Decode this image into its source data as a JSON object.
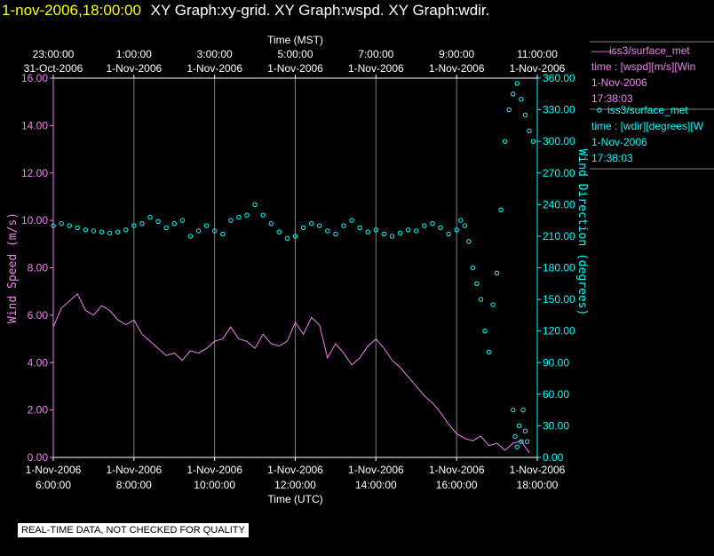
{
  "title": {
    "datetime": "1-nov-2006,18:00:00",
    "graphs": "XY Graph:xy-grid.  XY Graph:wspd.  XY Graph:wdir."
  },
  "colors": {
    "background": "#000000",
    "title_date": "#ffff00",
    "wind_speed": "#ee82ee",
    "wind_dir": "#00ffff",
    "grid": "#7f7f7f",
    "axis_text": "#ffffff"
  },
  "chart_data": {
    "type": "line",
    "top_axis": {
      "title": "Time (MST)",
      "ticks": [
        {
          "hour": 6,
          "time": "23:00:00",
          "date": "31-Oct-2006"
        },
        {
          "hour": 8,
          "time": "1:00:00",
          "date": "1-Nov-2006"
        },
        {
          "hour": 10,
          "time": "3:00:00",
          "date": "1-Nov-2006"
        },
        {
          "hour": 12,
          "time": "5:00:00",
          "date": "1-Nov-2006"
        },
        {
          "hour": 14,
          "time": "7:00:00",
          "date": "1-Nov-2006"
        },
        {
          "hour": 16,
          "time": "9:00:00",
          "date": "1-Nov-2006"
        },
        {
          "hour": 18,
          "time": "11:00:00",
          "date": "1-Nov-2006"
        }
      ]
    },
    "bottom_axis": {
      "title": "Time (UTC)",
      "ticks": [
        {
          "hour": 6,
          "date": "1-Nov-2006",
          "time": "6:00:00"
        },
        {
          "hour": 8,
          "date": "1-Nov-2006",
          "time": "8:00:00"
        },
        {
          "hour": 10,
          "date": "1-Nov-2006",
          "time": "10:00:00"
        },
        {
          "hour": 12,
          "date": "1-Nov-2006",
          "time": "12:00:00"
        },
        {
          "hour": 14,
          "date": "1-Nov-2006",
          "time": "14:00:00"
        },
        {
          "hour": 16,
          "date": "1-Nov-2006",
          "time": "16:00:00"
        },
        {
          "hour": 18,
          "date": "1-Nov-2006",
          "time": "18:00:00"
        }
      ]
    },
    "xlim_hours": [
      6,
      18
    ],
    "left_axis": {
      "label": "Wind Speed (m/s)",
      "ylim": [
        0,
        16
      ],
      "ticks": [
        "0.00",
        "2.00",
        "4.00",
        "6.00",
        "8.00",
        "10.00",
        "12.00",
        "14.00",
        "16.00"
      ]
    },
    "right_axis": {
      "label": "Wind Direction (degrees)",
      "ylim": [
        0,
        360
      ],
      "ticks": [
        "0.00",
        "30.00",
        "60.00",
        "90.00",
        "120.00",
        "150.00",
        "180.00",
        "210.00",
        "240.00",
        "270.00",
        "300.00",
        "330.00",
        "360.00"
      ]
    },
    "grid": true,
    "series": [
      {
        "name": "wspd",
        "axis": "left",
        "style": "line",
        "hours": [
          6.0,
          6.2,
          6.4,
          6.6,
          6.8,
          7.0,
          7.2,
          7.4,
          7.6,
          7.8,
          8.0,
          8.2,
          8.4,
          8.6,
          8.8,
          9.0,
          9.2,
          9.4,
          9.6,
          9.8,
          10.0,
          10.2,
          10.4,
          10.6,
          10.8,
          11.0,
          11.2,
          11.4,
          11.6,
          11.8,
          12.0,
          12.2,
          12.4,
          12.6,
          12.8,
          13.0,
          13.2,
          13.4,
          13.6,
          13.8,
          14.0,
          14.2,
          14.4,
          14.6,
          14.8,
          15.0,
          15.2,
          15.4,
          15.6,
          15.8,
          16.0,
          16.2,
          16.4,
          16.6,
          16.8,
          17.0,
          17.2,
          17.4,
          17.6,
          17.8
        ],
        "values": [
          5.5,
          6.3,
          6.6,
          6.9,
          6.2,
          6.0,
          6.4,
          6.2,
          5.8,
          5.6,
          5.8,
          5.2,
          4.9,
          4.6,
          4.3,
          4.4,
          4.1,
          4.5,
          4.4,
          4.6,
          4.9,
          5.0,
          5.5,
          5.0,
          4.9,
          4.6,
          5.2,
          4.8,
          4.7,
          4.9,
          5.7,
          5.2,
          5.9,
          5.6,
          4.2,
          4.8,
          4.4,
          3.9,
          4.2,
          4.7,
          5.0,
          4.6,
          4.1,
          3.8,
          3.4,
          3.0,
          2.6,
          2.3,
          1.9,
          1.4,
          1.0,
          0.8,
          0.7,
          0.9,
          0.5,
          0.6,
          0.3,
          0.6,
          0.7,
          0.2
        ]
      },
      {
        "name": "wdir",
        "axis": "right",
        "style": "markers",
        "hours": [
          6.0,
          6.2,
          6.4,
          6.6,
          6.8,
          7.0,
          7.2,
          7.4,
          7.6,
          7.8,
          8.0,
          8.2,
          8.4,
          8.6,
          8.8,
          9.0,
          9.2,
          9.4,
          9.6,
          9.8,
          10.0,
          10.2,
          10.4,
          10.6,
          10.8,
          11.0,
          11.2,
          11.4,
          11.6,
          11.8,
          12.0,
          12.2,
          12.4,
          12.6,
          12.8,
          13.0,
          13.2,
          13.4,
          13.6,
          13.8,
          14.0,
          14.2,
          14.4,
          14.6,
          14.8,
          15.0,
          15.2,
          15.4,
          15.6,
          15.8,
          16.0,
          16.1,
          16.2,
          16.3,
          16.4,
          16.5,
          16.6,
          16.7,
          16.8,
          16.9,
          17.0,
          17.1,
          17.2,
          17.3,
          17.4,
          17.5,
          17.6,
          17.7,
          17.8,
          17.9
        ],
        "values": [
          220,
          222,
          220,
          218,
          216,
          215,
          214,
          213,
          214,
          216,
          220,
          222,
          228,
          224,
          218,
          222,
          225,
          210,
          215,
          220,
          215,
          212,
          225,
          228,
          230,
          240,
          230,
          222,
          214,
          208,
          210,
          218,
          222,
          220,
          215,
          212,
          220,
          225,
          218,
          214,
          216,
          212,
          210,
          213,
          216,
          215,
          220,
          222,
          218,
          212,
          216,
          225,
          220,
          205,
          180,
          165,
          150,
          120,
          100,
          145,
          175,
          235,
          300,
          330,
          345,
          355,
          340,
          325,
          310,
          300
        ]
      },
      {
        "name": "wdir-late-low",
        "axis": "right",
        "style": "markers",
        "hours": [
          17.4,
          17.45,
          17.5,
          17.55,
          17.6,
          17.65,
          17.7,
          17.75
        ],
        "values": [
          45,
          20,
          10,
          30,
          15,
          45,
          25,
          15
        ]
      }
    ]
  },
  "legend": [
    {
      "marker": "——",
      "source": "iss3/surface_met",
      "field": "time : [wspd][m/s][Win",
      "date": "1-Nov-2006",
      "time": "17:38:03"
    },
    {
      "marker": "o",
      "source": "iss3/surface_met",
      "field": "time : [wdir][degrees][W",
      "date": "1-Nov-2006",
      "time": "17:38:03"
    }
  ],
  "disclaimer": "REAL-TIME DATA, NOT CHECKED FOR QUALITY"
}
